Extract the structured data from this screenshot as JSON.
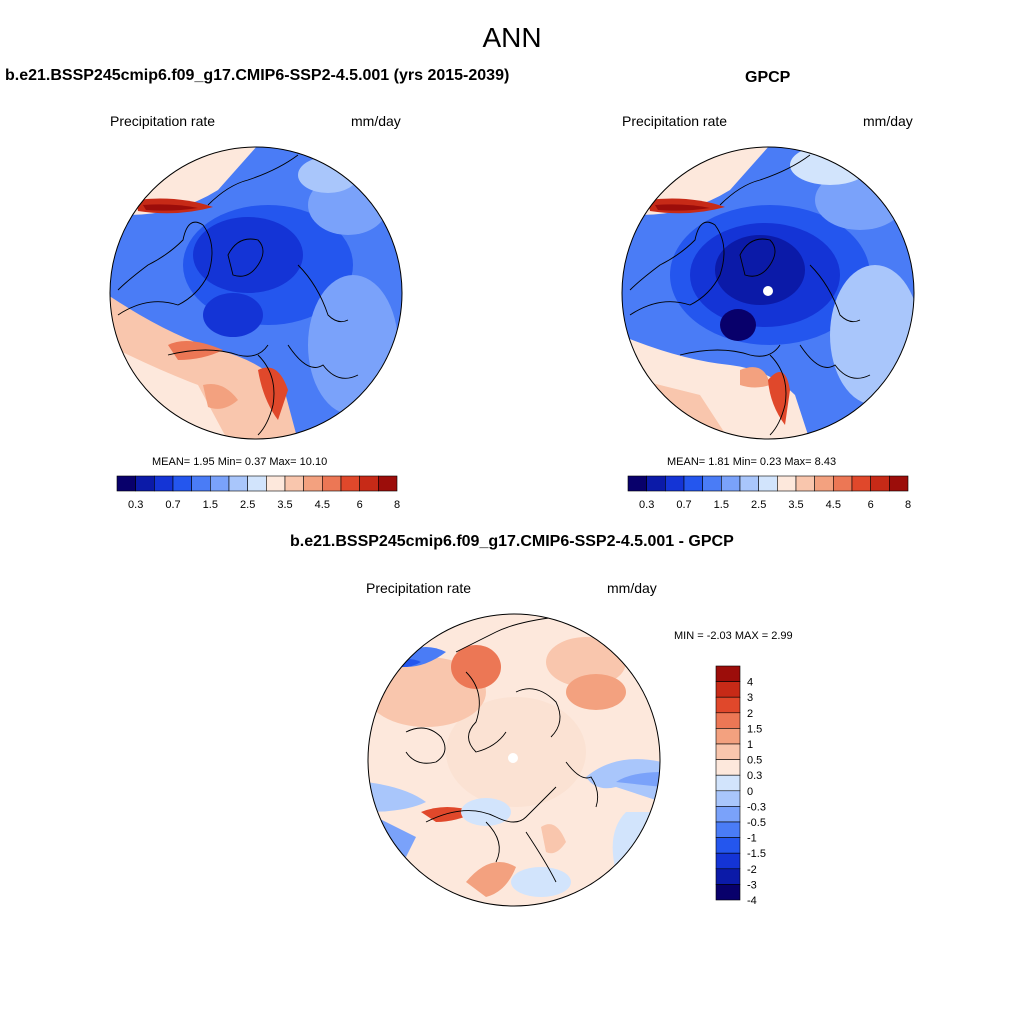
{
  "figure": {
    "title": "ANN"
  },
  "colors": {
    "seq": [
      "#08006b",
      "#0b1aa8",
      "#1434d6",
      "#2456ee",
      "#4a7cf6",
      "#7aa2fa",
      "#a9c6fb",
      "#d2e4fc",
      "#fde8dc",
      "#f9c6ad",
      "#f3a17f",
      "#ec7755",
      "#e0482b",
      "#c72a17",
      "#9c0d0a"
    ],
    "div": [
      "#08006b",
      "#0b1aa8",
      "#1434d6",
      "#2456ee",
      "#4a7cf6",
      "#7aa2fa",
      "#a9c6fb",
      "#d2e4fc",
      "#fde8dc",
      "#f9c6ad",
      "#f3a17f",
      "#ec7755",
      "#e0482b",
      "#c72a17",
      "#9c0d0a"
    ]
  },
  "panels": {
    "model": {
      "title": "b.e21.BSSP245cmip6.f09_g17.CMIP6-SSP2-4.5.001 (yrs 2015-2039)",
      "variable": "Precipitation rate",
      "units": "mm/day",
      "stats": "MEAN=   1.95  Min=   0.37  Max=  10.10",
      "colorbar_labels": [
        "0.3",
        "0.7",
        "1.5",
        "2.5",
        "3.5",
        "4.5",
        "6",
        "8"
      ]
    },
    "obs": {
      "title": "GPCP",
      "variable": "Precipitation rate",
      "units": "mm/day",
      "stats": "MEAN=   1.81  Min=   0.23  Max=   8.43",
      "colorbar_labels": [
        "0.3",
        "0.7",
        "1.5",
        "2.5",
        "3.5",
        "4.5",
        "6",
        "8"
      ]
    },
    "diff": {
      "title": "b.e21.BSSP245cmip6.f09_g17.CMIP6-SSP2-4.5.001 - GPCP",
      "variable": "Precipitation rate",
      "units": "mm/day",
      "stats": "MIN =  -2.03 MAX =   2.99",
      "colorbar_labels": [
        "4",
        "3",
        "2",
        "1.5",
        "1",
        "0.5",
        "0.3",
        "0",
        "-0.3",
        "-0.5",
        "-1",
        "-1.5",
        "-2",
        "-3",
        "-4"
      ]
    }
  }
}
